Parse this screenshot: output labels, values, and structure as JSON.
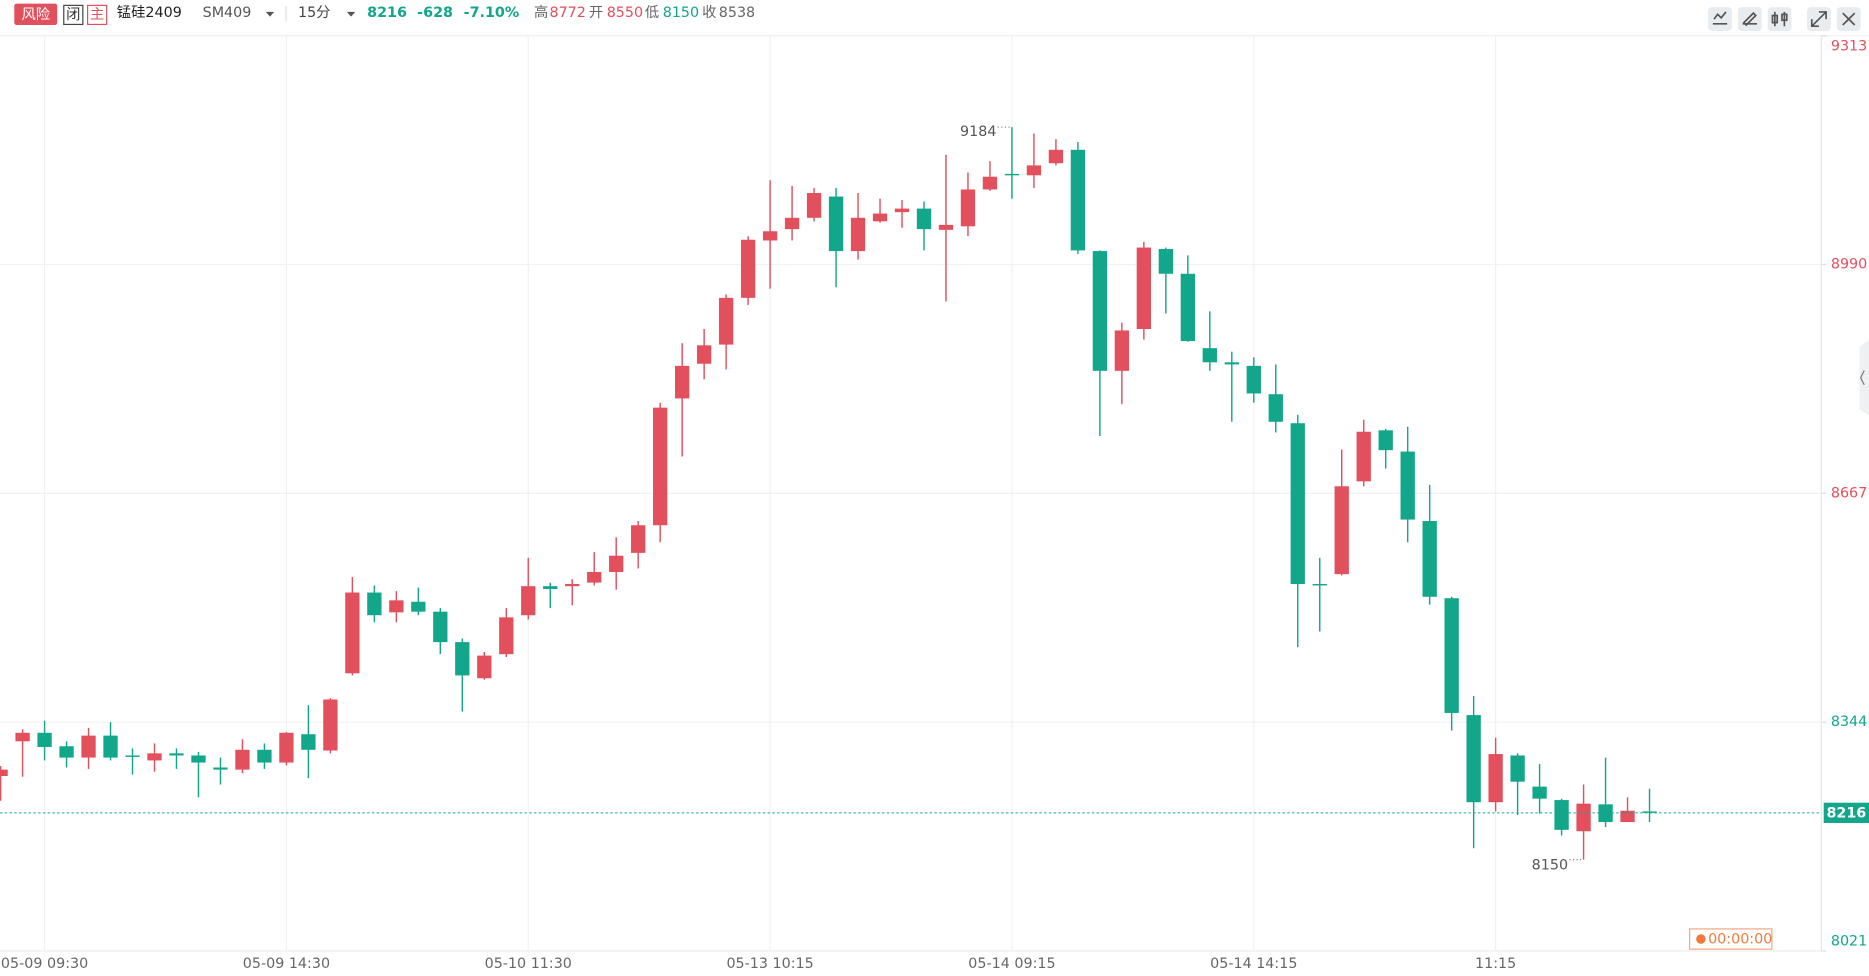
{
  "header": {
    "badges": [
      "风险",
      "闭",
      "主"
    ],
    "name": "锰硅2409",
    "code": "SM409",
    "period": "15分",
    "price": 8216,
    "change": -628,
    "change_pct": "-7.10%",
    "high_label": "高",
    "high": 8772,
    "open_label": "开",
    "open": 8550,
    "low_label": "低",
    "low": 8150,
    "close_label": "收",
    "close": 8538,
    "timer": "00:00:00"
  },
  "chart_data": {
    "type": "candlestick",
    "categories": [
      null,
      null,
      "05-09 09:30",
      null,
      null,
      null,
      null,
      null,
      null,
      null,
      null,
      null,
      null,
      "05-09 14:30",
      null,
      null,
      null,
      null,
      null,
      null,
      null,
      null,
      null,
      null,
      "05-10 11:30",
      null,
      null,
      null,
      null,
      null,
      null,
      null,
      null,
      null,
      null,
      "05-13 10:15",
      null,
      null,
      null,
      null,
      null,
      null,
      null,
      null,
      null,
      null,
      "05-14 09:15",
      null,
      null,
      null,
      null,
      null,
      null,
      null,
      null,
      null,
      null,
      "05-14 14:15",
      null,
      null,
      null,
      null,
      null,
      null,
      null,
      null,
      null,
      null,
      "11:15",
      null,
      null,
      null,
      null,
      null,
      null,
      null
    ],
    "open": [
      8268,
      8317,
      8329,
      8310,
      8294,
      8325,
      8297,
      8290,
      8300,
      8297,
      8280,
      8277,
      8305,
      8287,
      8327,
      8304,
      8413,
      8527,
      8499,
      8514,
      8500,
      8457,
      8406,
      8440,
      8495,
      8536,
      8536,
      8541,
      8556,
      8583,
      8622,
      8801,
      8850,
      8877,
      8943,
      9024,
      9040,
      9056,
      9086,
      9009,
      9051,
      9064,
      9069,
      9039,
      9044,
      9096,
      9118,
      9116,
      9133,
      9152,
      9009,
      8840,
      8899,
      9012,
      8977,
      8872,
      8852,
      8847,
      8807,
      8766,
      8539,
      8553,
      8684,
      8756,
      8726,
      8628,
      8519,
      8354,
      8231,
      8297,
      8253,
      8234,
      8190,
      8228,
      8203,
      8218
    ],
    "high": [
      8282,
      8334,
      8346,
      8317,
      8336,
      8344,
      8307,
      8314,
      8307,
      8302,
      8294,
      8320,
      8314,
      8330,
      8368,
      8378,
      8549,
      8537,
      8529,
      8534,
      8505,
      8462,
      8443,
      8505,
      8576,
      8541,
      8546,
      8584,
      8605,
      8628,
      8795,
      8879,
      8899,
      8948,
      9030,
      9109,
      9101,
      9098,
      9098,
      9091,
      9083,
      9081,
      9079,
      9145,
      9120,
      9136,
      9184,
      9175,
      9167,
      9163,
      9010,
      8908,
      9022,
      9014,
      9003,
      8924,
      8867,
      8859,
      8849,
      8778,
      8576,
      8729,
      8771,
      8758,
      8761,
      8679,
      8521,
      8381,
      8322,
      8300,
      8285,
      8236,
      8256,
      8294,
      8238,
      8250
    ],
    "low": [
      8233,
      8267,
      8290,
      8280,
      8278,
      8290,
      8270,
      8274,
      8278,
      8238,
      8256,
      8272,
      8278,
      8283,
      8265,
      8300,
      8410,
      8485,
      8485,
      8495,
      8440,
      8359,
      8404,
      8436,
      8489,
      8505,
      8509,
      8537,
      8531,
      8561,
      8598,
      8719,
      8828,
      8842,
      8933,
      8956,
      9024,
      9051,
      8958,
      8997,
      9049,
      9042,
      9010,
      8938,
      9030,
      9094,
      9083,
      9098,
      9130,
      9005,
      8748,
      8793,
      8884,
      8921,
      8881,
      8840,
      8768,
      8795,
      8753,
      8450,
      8472,
      8551,
      8677,
      8702,
      8598,
      8510,
      8332,
      8166,
      8218,
      8213,
      8215,
      8184,
      8150,
      8196,
      8203,
      8203
    ],
    "close": [
      8277,
      8329,
      8309,
      8294,
      8325,
      8294,
      8295,
      8300,
      8297,
      8287,
      8277,
      8305,
      8287,
      8329,
      8305,
      8376,
      8527,
      8495,
      8516,
      8500,
      8457,
      8410,
      8438,
      8492,
      8536,
      8532,
      8539,
      8556,
      8579,
      8622,
      8788,
      8847,
      8876,
      8943,
      9025,
      9037,
      9056,
      9091,
      9009,
      9056,
      9062,
      9069,
      9040,
      9046,
      9096,
      9114,
      9116,
      9130,
      9152,
      9010,
      8840,
      8897,
      9014,
      8977,
      8882,
      8852,
      8849,
      8808,
      8768,
      8539,
      8537,
      8677,
      8754,
      8728,
      8630,
      8521,
      8357,
      8231,
      8299,
      8260,
      8236,
      8192,
      8229,
      8203,
      8219,
      8216
    ],
    "up_color": "#e2505d",
    "down_color": "#12a68a",
    "ylim": [
      8021,
      9313
    ],
    "yticks": [
      8021,
      8344,
      8667,
      8990,
      9313
    ],
    "grid": true
  }
}
